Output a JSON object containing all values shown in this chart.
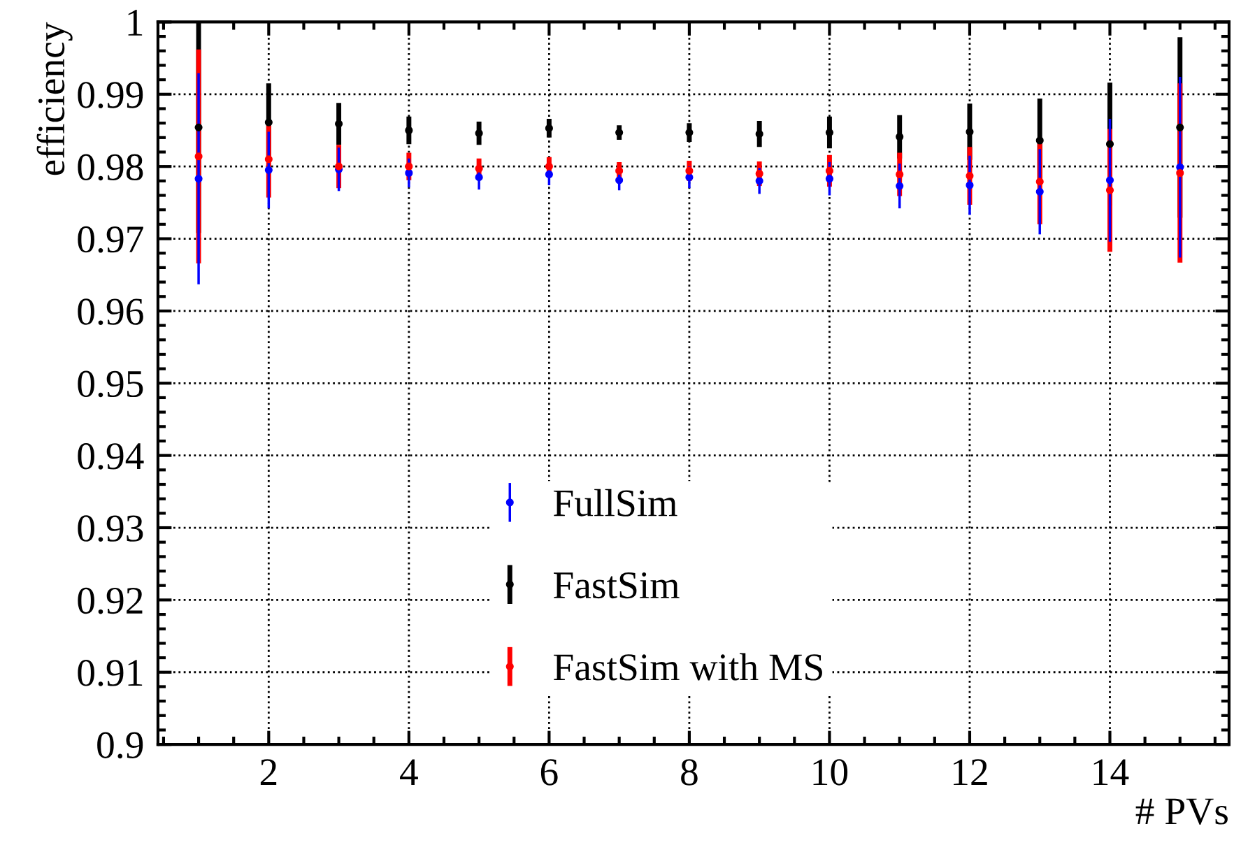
{
  "chart_data": {
    "type": "scatter",
    "xlabel": "# PVs",
    "ylabel": "efficiency",
    "x": [
      1,
      2,
      3,
      4,
      5,
      6,
      7,
      8,
      9,
      10,
      11,
      12,
      13,
      14,
      15
    ],
    "series": [
      {
        "name": "FullSim",
        "color": "#0000ff",
        "values": [
          0.9783,
          0.9795,
          0.9796,
          0.9791,
          0.9785,
          0.9789,
          0.9781,
          0.9785,
          0.978,
          0.9783,
          0.9773,
          0.9774,
          0.9765,
          0.9781,
          0.9799
        ],
        "errors": [
          0.0146,
          0.0053,
          0.003,
          0.002,
          0.0017,
          0.0015,
          0.0014,
          0.0015,
          0.0018,
          0.0023,
          0.0031,
          0.0041,
          0.0059,
          0.0085,
          0.0125
        ]
      },
      {
        "name": "FastSim",
        "color": "#000000",
        "values": [
          0.9854,
          0.9861,
          0.9859,
          0.985,
          0.9846,
          0.9853,
          0.9847,
          0.9847,
          0.9845,
          0.9847,
          0.9841,
          0.9848,
          0.9836,
          0.9831,
          0.9854
        ],
        "errors": [
          0.0146,
          0.0054,
          0.0029,
          0.0019,
          0.0016,
          0.0013,
          0.001,
          0.0013,
          0.0018,
          0.0022,
          0.003,
          0.0039,
          0.0058,
          0.0085,
          0.0125
        ]
      },
      {
        "name": "FastSim with MS",
        "color": "#ff0000",
        "values": [
          0.9814,
          0.981,
          0.98,
          0.98,
          0.9797,
          0.98,
          0.9794,
          0.9794,
          0.979,
          0.9794,
          0.9789,
          0.9787,
          0.9779,
          0.9767,
          0.9791
        ],
        "errors": [
          0.0148,
          0.0053,
          0.003,
          0.0019,
          0.0014,
          0.0013,
          0.0012,
          0.0014,
          0.0017,
          0.0022,
          0.003,
          0.004,
          0.0059,
          0.0085,
          0.0124
        ]
      }
    ],
    "xlim": [
      0.42,
      15.7
    ],
    "ylim": [
      0.9,
      1
    ],
    "xticks": [
      2,
      4,
      6,
      8,
      10,
      12,
      14
    ],
    "yticks": [
      0.9,
      0.91,
      0.92,
      0.93,
      0.94,
      0.95,
      0.96,
      0.97,
      0.98,
      0.99,
      1
    ],
    "grid": true,
    "legend": "bottom",
    "marker": "circle"
  }
}
